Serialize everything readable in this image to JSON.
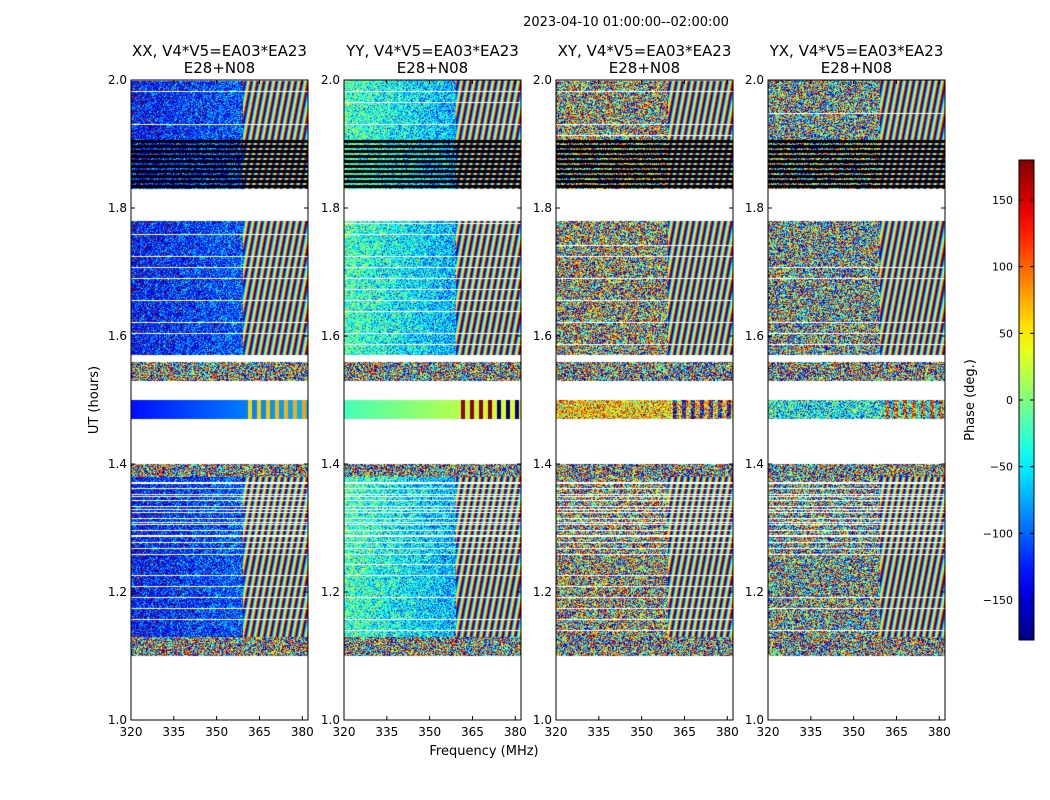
{
  "chart_data": {
    "type": "heatmap",
    "suptitle": "2023-04-10  01:00:00--02:00:00",
    "xlabel": "Frequency (MHz)",
    "ylabel": "UT (hours)",
    "xlim": [
      320,
      382
    ],
    "ylim": [
      1.0,
      2.0
    ],
    "xticks": [
      320,
      335,
      350,
      365,
      380
    ],
    "yticks": [
      1.0,
      1.2,
      1.4,
      1.6,
      1.8,
      2.0
    ],
    "ytick_labels": [
      "1.0",
      "1.2",
      "1.4",
      "1.6",
      "1.8",
      "2.0"
    ],
    "panels": [
      {
        "title_line1": "XX, V4*V5=EA03*EA23",
        "title_line2": "E28+N08",
        "pol": "XX",
        "mean_phase": -130,
        "phase_slope": 0.8,
        "rfi_start_mhz": 359
      },
      {
        "title_line1": "YY, V4*V5=EA03*EA23",
        "title_line2": "E28+N08",
        "pol": "YY",
        "mean_phase": -20,
        "phase_slope": -1.5,
        "rfi_start_mhz": 359
      },
      {
        "title_line1": "XY, V4*V5=EA03*EA23",
        "title_line2": "E28+N08",
        "pol": "XY",
        "mean_phase": 60,
        "phase_slope": 0.0,
        "rfi_start_mhz": 359
      },
      {
        "title_line1": "YX, V4*V5=EA03*EA23",
        "title_line2": "E28+N08",
        "pol": "YX",
        "mean_phase": -40,
        "phase_slope": 0.0,
        "rfi_start_mhz": 359
      }
    ],
    "time_segments_ut": [
      {
        "start": 1.1,
        "end": 1.13,
        "kind": "noisy"
      },
      {
        "start": 1.13,
        "end": 1.25,
        "kind": "data"
      },
      {
        "start": 1.25,
        "end": 1.38,
        "kind": "striped"
      },
      {
        "start": 1.38,
        "end": 1.4,
        "kind": "noisy"
      },
      {
        "start": 1.47,
        "end": 1.5,
        "kind": "smooth"
      },
      {
        "start": 1.53,
        "end": 1.56,
        "kind": "noisy"
      },
      {
        "start": 1.57,
        "end": 1.78,
        "kind": "data"
      },
      {
        "start": 1.83,
        "end": 1.91,
        "kind": "flagged"
      },
      {
        "start": 1.91,
        "end": 2.0,
        "kind": "data"
      }
    ],
    "colorbar": {
      "label": "Phase (deg.)",
      "range": [
        -180,
        180
      ],
      "ticks": [
        150,
        100,
        50,
        0,
        -50,
        -100,
        -150
      ],
      "tick_labels": [
        "150",
        "100",
        "50",
        "0",
        "−50",
        "−100",
        "−150"
      ],
      "colormap": "jet"
    }
  }
}
